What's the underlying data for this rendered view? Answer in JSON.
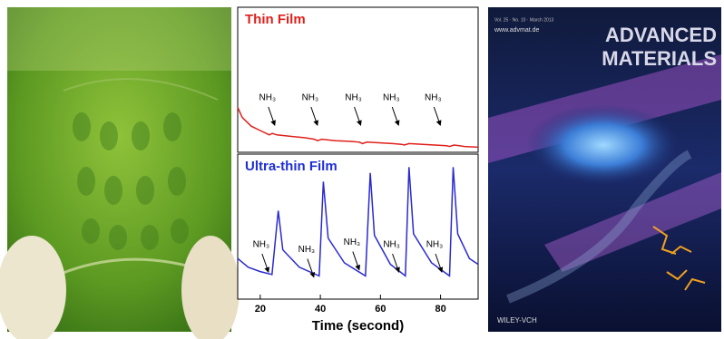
{
  "chart_data": [
    {
      "type": "line",
      "title": "Thin Film",
      "title_color": "#e0201b",
      "color": "#e0201b",
      "x": [
        12.5,
        14,
        17,
        20,
        23,
        24,
        25.5,
        30,
        35,
        38,
        39,
        40.5,
        45,
        50,
        53,
        54,
        55.5,
        60,
        64,
        67,
        68,
        69.5,
        74,
        78,
        82,
        83,
        84.5,
        88,
        92.5
      ],
      "values": [
        31,
        24,
        18,
        15,
        12,
        13,
        12,
        11,
        10,
        9,
        8,
        9,
        8,
        7.5,
        7,
        6,
        7,
        6.5,
        6,
        5.5,
        5,
        6,
        5.5,
        5,
        4.5,
        4,
        5,
        4,
        3.5
      ],
      "xlim": [
        12.5,
        92.5
      ],
      "ylim": [
        0,
        100
      ],
      "annotations": [
        {
          "text": "NH₃",
          "x": 22.4,
          "y": 37.5
        },
        {
          "text": "NH₃",
          "x": 36.6,
          "y": 37.5
        },
        {
          "text": "NH₃",
          "x": 51,
          "y": 37.5
        },
        {
          "text": "NH₃",
          "x": 63.6,
          "y": 37.5
        },
        {
          "text": "NH₃",
          "x": 77.5,
          "y": 37.5
        }
      ]
    },
    {
      "type": "line",
      "title": "Ultra-thin Film",
      "title_color": "#1f2fd6",
      "color": "#2a2ad0",
      "x": [
        12.5,
        16,
        20,
        23.9,
        26,
        27.5,
        33,
        39.6,
        41,
        42.6,
        48,
        55,
        56.6,
        58,
        63.3,
        68.3,
        69.5,
        71,
        77,
        83,
        84.2,
        85.7,
        89.6,
        92.5
      ],
      "values": [
        28,
        22,
        19,
        17,
        61,
        34,
        22,
        16,
        81,
        42,
        25,
        16,
        87,
        44,
        24,
        16,
        91,
        45,
        25,
        16,
        91,
        45,
        28,
        24
      ],
      "xlim": [
        12.5,
        92.5
      ],
      "ylim": [
        0,
        100
      ],
      "xticks": [
        20,
        40,
        60,
        80
      ],
      "xlabel": "Time (second)",
      "annotations": [
        {
          "text": "NH₃",
          "x": 20.3,
          "y": 37.5
        },
        {
          "text": "NH₃",
          "x": 35.4,
          "y": 34
        },
        {
          "text": "NH₃",
          "x": 50.5,
          "y": 39
        },
        {
          "text": "NH₃",
          "x": 63.7,
          "y": 37.5
        },
        {
          "text": "NH₃",
          "x": 78,
          "y": 37.5
        }
      ]
    }
  ],
  "cover": {
    "line1": "ADVANCED",
    "line2": "MATERIALS",
    "url": "www.advmat.de",
    "publisher": "WILEY-VCH"
  }
}
